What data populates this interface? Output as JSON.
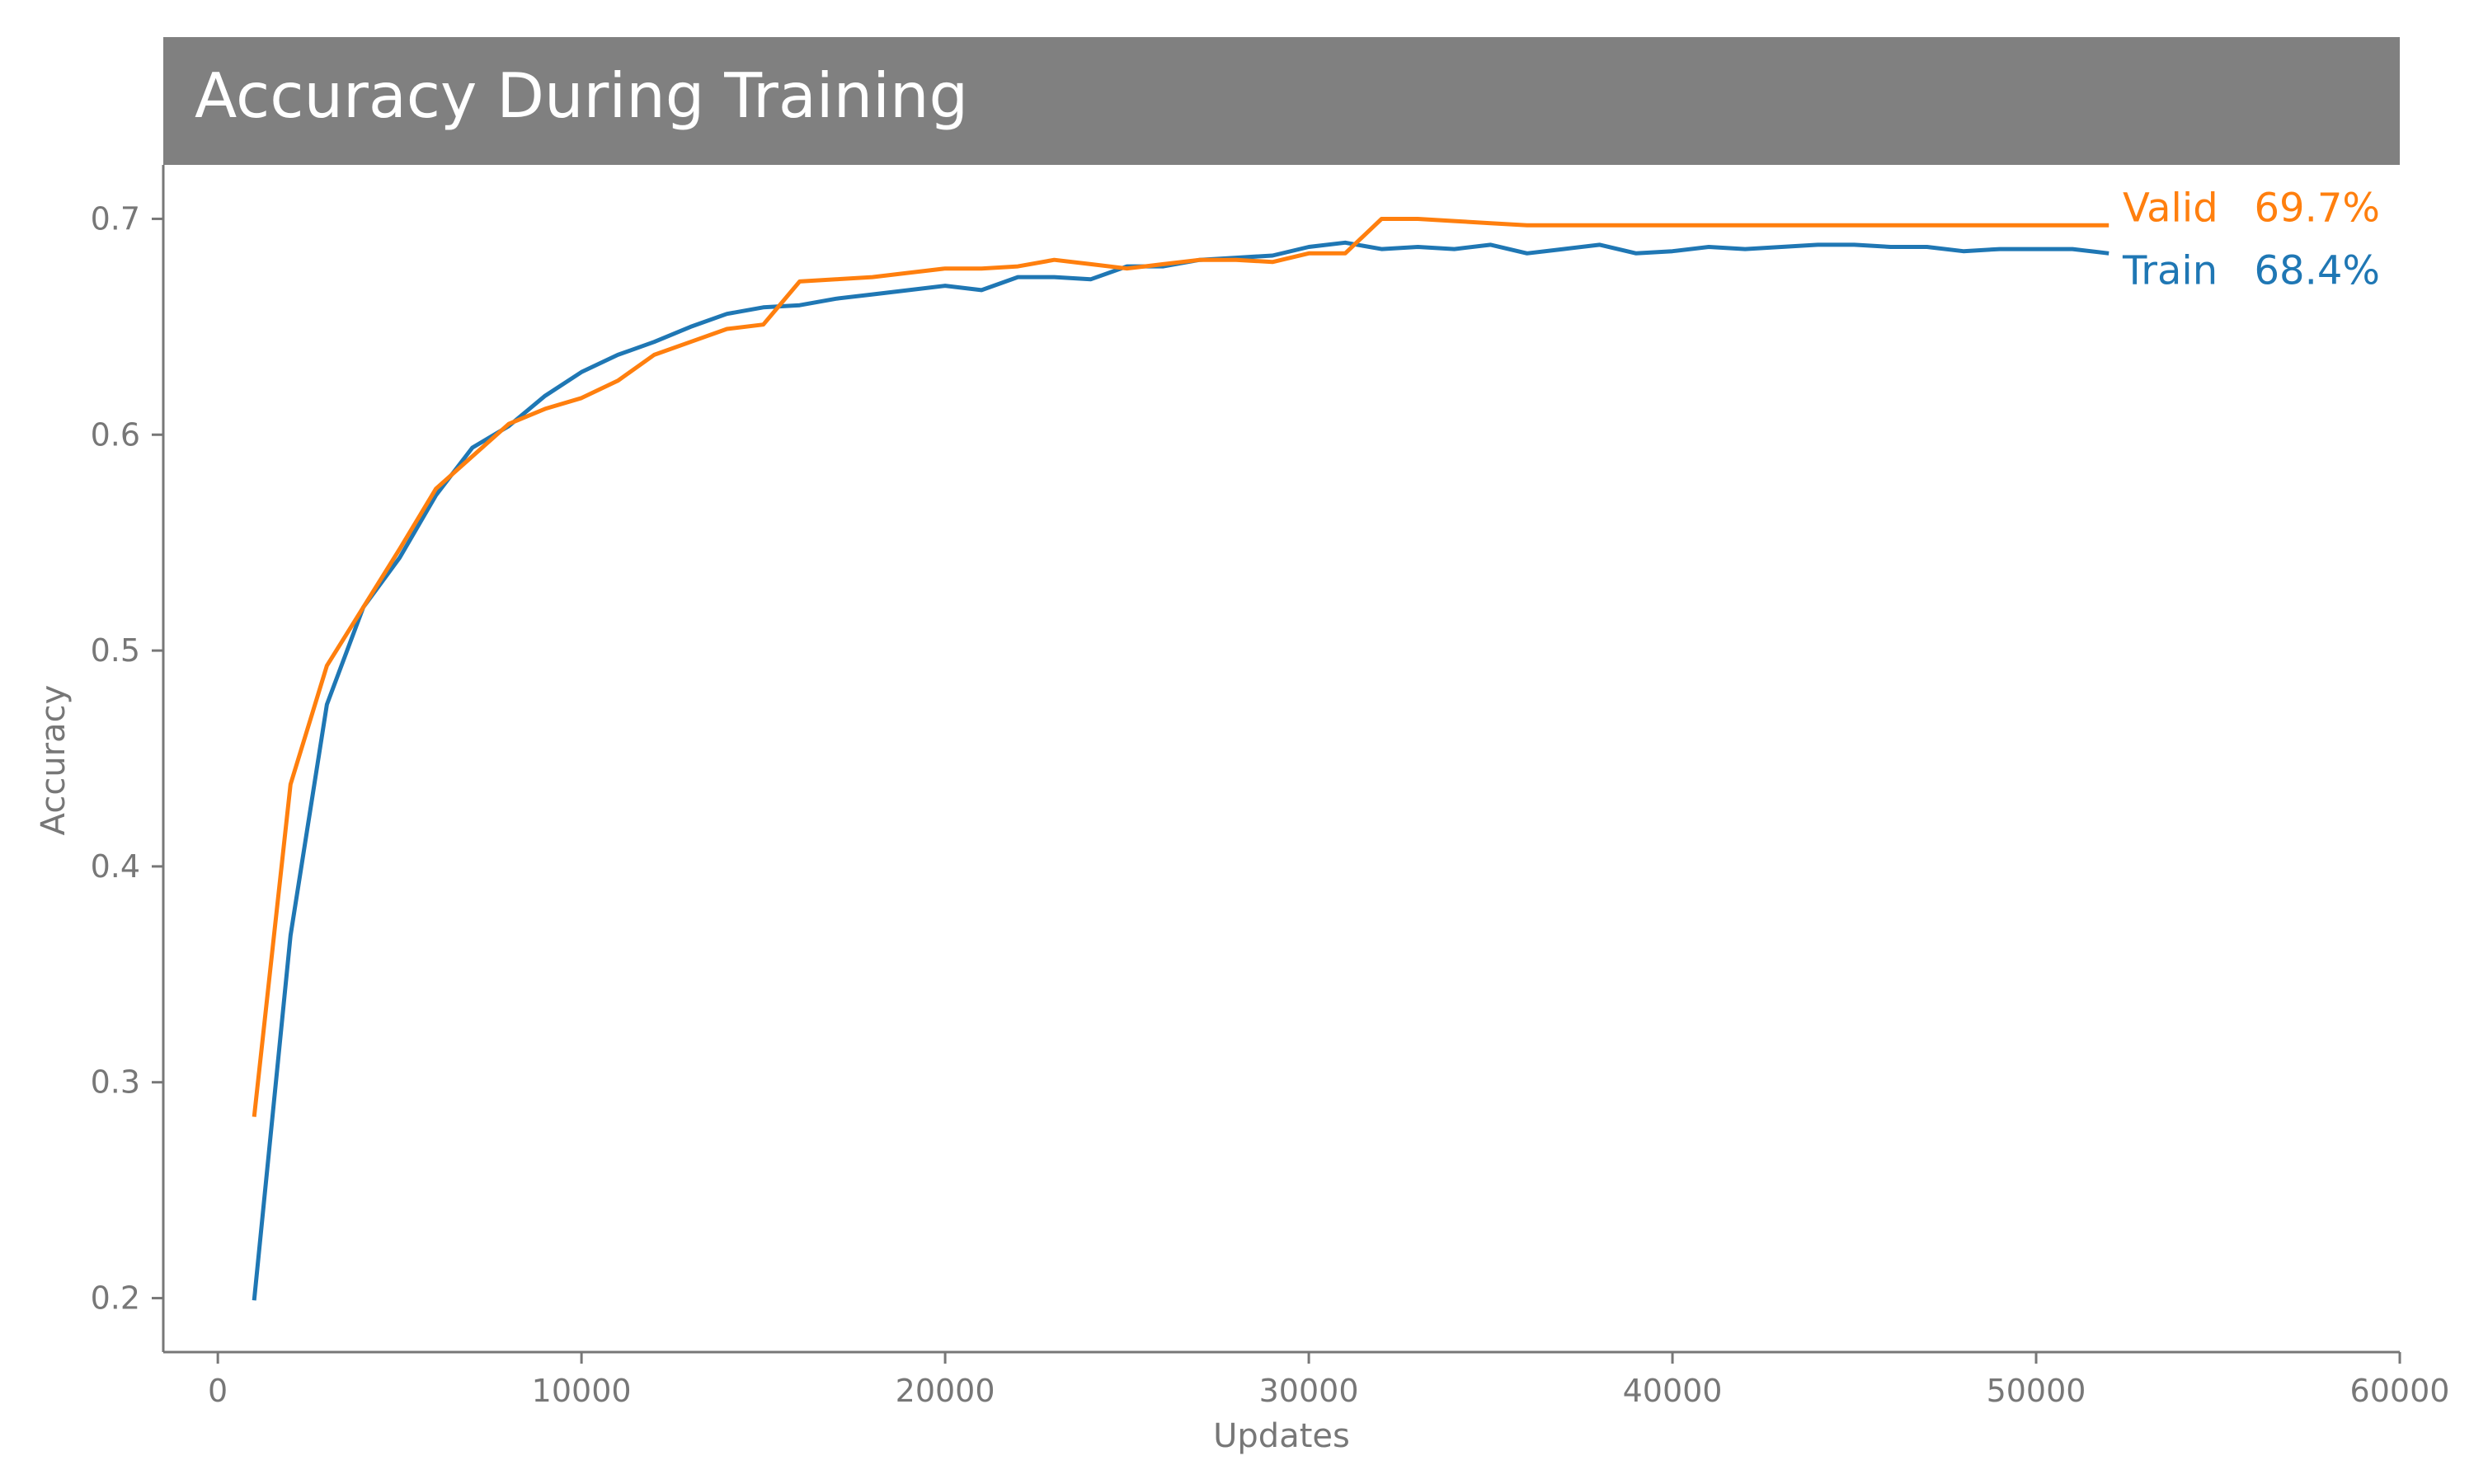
{
  "chart_data": {
    "type": "line",
    "title": "Accuracy During Training",
    "xlabel": "Updates",
    "ylabel": "Accuracy",
    "xlim": [
      -1500,
      60000
    ],
    "ylim": [
      0.175,
      0.725
    ],
    "xticks": [
      0,
      10000,
      20000,
      30000,
      40000,
      50000,
      60000
    ],
    "xtick_labels": [
      "0",
      "10000",
      "20000",
      "30000",
      "40000",
      "50000",
      "60000"
    ],
    "yticks": [
      0.2,
      0.3,
      0.4,
      0.5,
      0.6,
      0.7
    ],
    "ytick_labels": [
      "0.2",
      "0.3",
      "0.4",
      "0.5",
      "0.6",
      "0.7"
    ],
    "grid": false,
    "legend": "none (series labeled at line ends, right)",
    "x": [
      1000,
      2000,
      3000,
      4000,
      5000,
      6000,
      7000,
      8000,
      9000,
      10000,
      11000,
      12000,
      13000,
      14000,
      15000,
      16000,
      17000,
      18000,
      19000,
      20000,
      21000,
      22000,
      23000,
      24000,
      25000,
      26000,
      27000,
      28000,
      29000,
      30000,
      31000,
      32000,
      33000,
      34000,
      35000,
      36000,
      37000,
      38000,
      39000,
      40000,
      41000,
      42000,
      43000,
      44000,
      45000,
      46000,
      47000,
      48000,
      49000,
      50000,
      51000,
      52000
    ],
    "series": [
      {
        "name": "Train",
        "end_label": "Train",
        "end_value_label": "68.4%",
        "color": "#1f77b4",
        "values": [
          0.199,
          0.368,
          0.475,
          0.52,
          0.543,
          0.572,
          0.594,
          0.604,
          0.618,
          0.629,
          0.637,
          0.643,
          0.65,
          0.656,
          0.659,
          0.66,
          0.663,
          0.665,
          0.667,
          0.669,
          0.667,
          0.673,
          0.673,
          0.672,
          0.678,
          0.678,
          0.681,
          0.682,
          0.683,
          0.687,
          0.689,
          0.686,
          0.687,
          0.686,
          0.688,
          0.684,
          0.686,
          0.688,
          0.684,
          0.685,
          0.687,
          0.686,
          0.687,
          0.688,
          0.688,
          0.687,
          0.687,
          0.685,
          0.686,
          0.686,
          0.686,
          0.684
        ]
      },
      {
        "name": "Valid",
        "end_label": "Valid",
        "end_value_label": "69.7%",
        "color": "#ff7f0e",
        "values": [
          0.284,
          0.438,
          0.493,
          0.52,
          0.547,
          0.575,
          0.59,
          0.605,
          0.612,
          0.617,
          0.625,
          0.637,
          0.643,
          0.649,
          0.651,
          0.671,
          0.672,
          0.673,
          0.675,
          0.677,
          0.677,
          0.678,
          0.681,
          0.679,
          0.677,
          0.679,
          0.681,
          0.681,
          0.68,
          0.684,
          0.684,
          0.7,
          0.7,
          0.699,
          0.698,
          0.697,
          0.697,
          0.697,
          0.697,
          0.697,
          0.697,
          0.697,
          0.697,
          0.697,
          0.697,
          0.697,
          0.697,
          0.697,
          0.697,
          0.697,
          0.697,
          0.697
        ]
      }
    ],
    "colors": {
      "title_background": "#808080",
      "title_text": "#ffffff",
      "axis": "#777777",
      "tick_text": "#777777"
    }
  }
}
